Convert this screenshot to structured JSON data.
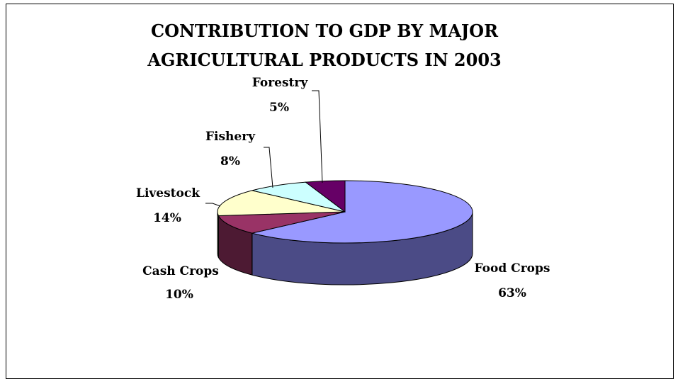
{
  "chart_data": {
    "type": "pie",
    "title_line1": "CONTRIBUTION TO GDP BY MAJOR",
    "title_line2": "AGRICULTURAL PRODUCTS IN 2003",
    "slices": [
      {
        "label": "Food Crops",
        "percent_text": "63%",
        "value": 63,
        "top_color": "#9999ff",
        "side_color": "#4b4b86"
      },
      {
        "label": "Cash Crops",
        "percent_text": "10%",
        "value": 10,
        "top_color": "#993366",
        "side_color": "#4d1a33"
      },
      {
        "label": "Livestock",
        "percent_text": "14%",
        "value": 14,
        "top_color": "#ffffcc",
        "side_color": "#8a8a6a"
      },
      {
        "label": "Fishery",
        "percent_text": "8%",
        "value": 8,
        "top_color": "#ccffff",
        "side_color": "#6a8888"
      },
      {
        "label": "Forestry",
        "percent_text": "5%",
        "value": 5,
        "top_color": "#660066",
        "side_color": "#330033"
      }
    ]
  }
}
